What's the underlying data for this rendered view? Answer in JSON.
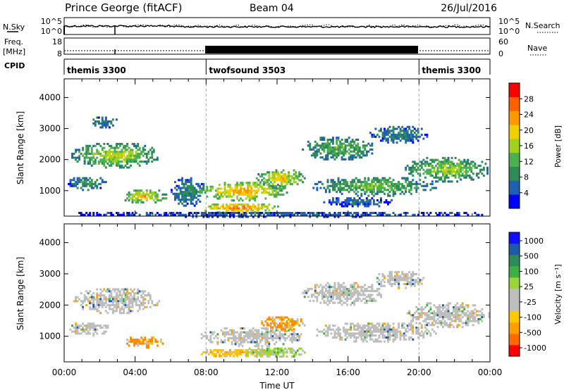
{
  "header": {
    "station": "Prince George (fitACF)",
    "beam": "Beam 04",
    "date": "26/Jul/2016"
  },
  "summary_panels": {
    "nsky_label": "N.Sky",
    "nsearch_label": "N.Search",
    "count_ticks": [
      "10^5",
      "10^0"
    ],
    "freq_label_line1": "Freq.",
    "freq_label_line2": "[MHz]",
    "freq_ticks": [
      "18",
      "8"
    ],
    "nave_label": "Nave",
    "nave_ticks": [
      "60",
      "0"
    ],
    "cpid_label": "CPID",
    "modes": [
      {
        "name": "themis 3300",
        "start_hour": 0,
        "end_hour": 8
      },
      {
        "name": "twofsound 3503",
        "start_hour": 8,
        "end_hour": 20
      },
      {
        "name": "themis 3300",
        "start_hour": 20,
        "end_hour": 24
      }
    ]
  },
  "colors": {
    "power": [
      "#0000ff",
      "#1f5fb4",
      "#2e8b57",
      "#4caf50",
      "#a0d020",
      "#f0d000",
      "#ff9900",
      "#ff6000",
      "#ff0000"
    ],
    "velocity": [
      "#ff0000",
      "#ff6a00",
      "#ffa000",
      "#ffc800",
      "#bebebe",
      "#bebebe",
      "#9ad53a",
      "#3cb043",
      "#2e8b57",
      "#1e5aa8",
      "#1010ff"
    ]
  },
  "chart_data": [
    {
      "type": "heatmap",
      "name": "power",
      "ylabel": "Slant Range [km]",
      "ylim": [
        180,
        4600
      ],
      "xlim": [
        0,
        24
      ],
      "y_ticks": [
        "1000",
        "2000",
        "3000",
        "4000"
      ],
      "y_tick_values": [
        1000,
        2000,
        3000,
        4000
      ],
      "colorbar": {
        "label": "Power [dB]",
        "range": [
          0,
          32
        ],
        "ticks": [
          "4",
          "8",
          "12",
          "16",
          "20",
          "24",
          "28"
        ],
        "tick_values": [
          4,
          8,
          12,
          16,
          20,
          24,
          28
        ]
      },
      "mode_boundaries_hours": [
        8,
        20
      ],
      "regions": [
        {
          "t0": 0.4,
          "t1": 5.4,
          "r0": 1750,
          "r1": 2600,
          "core": 21,
          "edge": 8
        },
        {
          "t0": 0.2,
          "t1": 2.4,
          "r0": 1050,
          "r1": 1500,
          "core": 12,
          "edge": 6
        },
        {
          "t0": 3.2,
          "t1": 5.8,
          "r0": 600,
          "r1": 1100,
          "core": 26,
          "edge": 10
        },
        {
          "t0": 1.6,
          "t1": 3.0,
          "r0": 3050,
          "r1": 3450,
          "core": 10,
          "edge": 6
        },
        {
          "t0": 6.0,
          "t1": 8.0,
          "r0": 500,
          "r1": 1500,
          "core": 10,
          "edge": 5
        },
        {
          "t0": 7.6,
          "t1": 12.6,
          "r0": 700,
          "r1": 1350,
          "core": 27,
          "edge": 12
        },
        {
          "t0": 7.6,
          "t1": 12.2,
          "r0": 300,
          "r1": 650,
          "core": 30,
          "edge": 15
        },
        {
          "t0": 10.8,
          "t1": 13.6,
          "r0": 1100,
          "r1": 1750,
          "core": 24,
          "edge": 10
        },
        {
          "t0": 13.4,
          "t1": 17.6,
          "r0": 2000,
          "r1": 2800,
          "core": 15,
          "edge": 7
        },
        {
          "t0": 14.0,
          "t1": 21.0,
          "r0": 850,
          "r1": 1500,
          "core": 17,
          "edge": 7
        },
        {
          "t0": 17.2,
          "t1": 20.6,
          "r0": 2550,
          "r1": 3150,
          "core": 10,
          "edge": 5
        },
        {
          "t0": 19.2,
          "t1": 24.0,
          "r0": 1300,
          "r1": 2150,
          "core": 19,
          "edge": 8
        },
        {
          "t0": 14.6,
          "t1": 18.6,
          "r0": 500,
          "r1": 850,
          "core": 9,
          "edge": 4
        },
        {
          "t0": 0.0,
          "t1": 24.0,
          "r0": 180,
          "r1": 380,
          "core": 7,
          "edge": 3
        }
      ]
    },
    {
      "type": "heatmap",
      "name": "velocity",
      "xlabel": "Time UT",
      "ylabel": "Slant Range [km]",
      "ylim": [
        180,
        4600
      ],
      "xlim": [
        0,
        24
      ],
      "x_ticks": [
        "00:00",
        "04:00",
        "08:00",
        "12:00",
        "16:00",
        "20:00",
        "00:00"
      ],
      "x_tick_values": [
        0,
        4,
        8,
        12,
        16,
        20,
        24
      ],
      "y_ticks": [
        "1000",
        "2000",
        "3000",
        "4000"
      ],
      "y_tick_values": [
        1000,
        2000,
        3000,
        4000
      ],
      "colorbar": {
        "label": "Velocity [m s⁻¹]",
        "ticks": [
          "1000",
          "500",
          "100",
          "25",
          "-25",
          "-100",
          "-500",
          "-1000"
        ]
      },
      "mode_boundaries_hours": [
        8,
        20
      ],
      "regions": [
        {
          "t0": 0.4,
          "t1": 5.4,
          "r0": 1750,
          "r1": 2600,
          "class": "gray"
        },
        {
          "t0": 0.2,
          "t1": 2.6,
          "r0": 1050,
          "r1": 1500,
          "class": "gray"
        },
        {
          "t0": 3.4,
          "t1": 5.6,
          "r0": 650,
          "r1": 1050,
          "class": "orange"
        },
        {
          "t0": 7.6,
          "t1": 13.6,
          "r0": 700,
          "r1": 1350,
          "class": "gray"
        },
        {
          "t0": 7.6,
          "t1": 12.4,
          "r0": 350,
          "r1": 650,
          "class": "yellow"
        },
        {
          "t0": 11.0,
          "t1": 13.6,
          "r0": 1150,
          "r1": 1700,
          "class": "orange"
        },
        {
          "t0": 10.0,
          "t1": 13.8,
          "r0": 350,
          "r1": 700,
          "class": "green"
        },
        {
          "t0": 13.4,
          "t1": 18.0,
          "r0": 2000,
          "r1": 2800,
          "class": "gray"
        },
        {
          "t0": 14.0,
          "t1": 21.0,
          "r0": 850,
          "r1": 1500,
          "class": "gray"
        },
        {
          "t0": 19.2,
          "t1": 24.0,
          "r0": 1300,
          "r1": 2150,
          "class": "gray"
        },
        {
          "t0": 17.4,
          "t1": 20.4,
          "r0": 2550,
          "r1": 3150,
          "class": "gray"
        }
      ]
    }
  ]
}
